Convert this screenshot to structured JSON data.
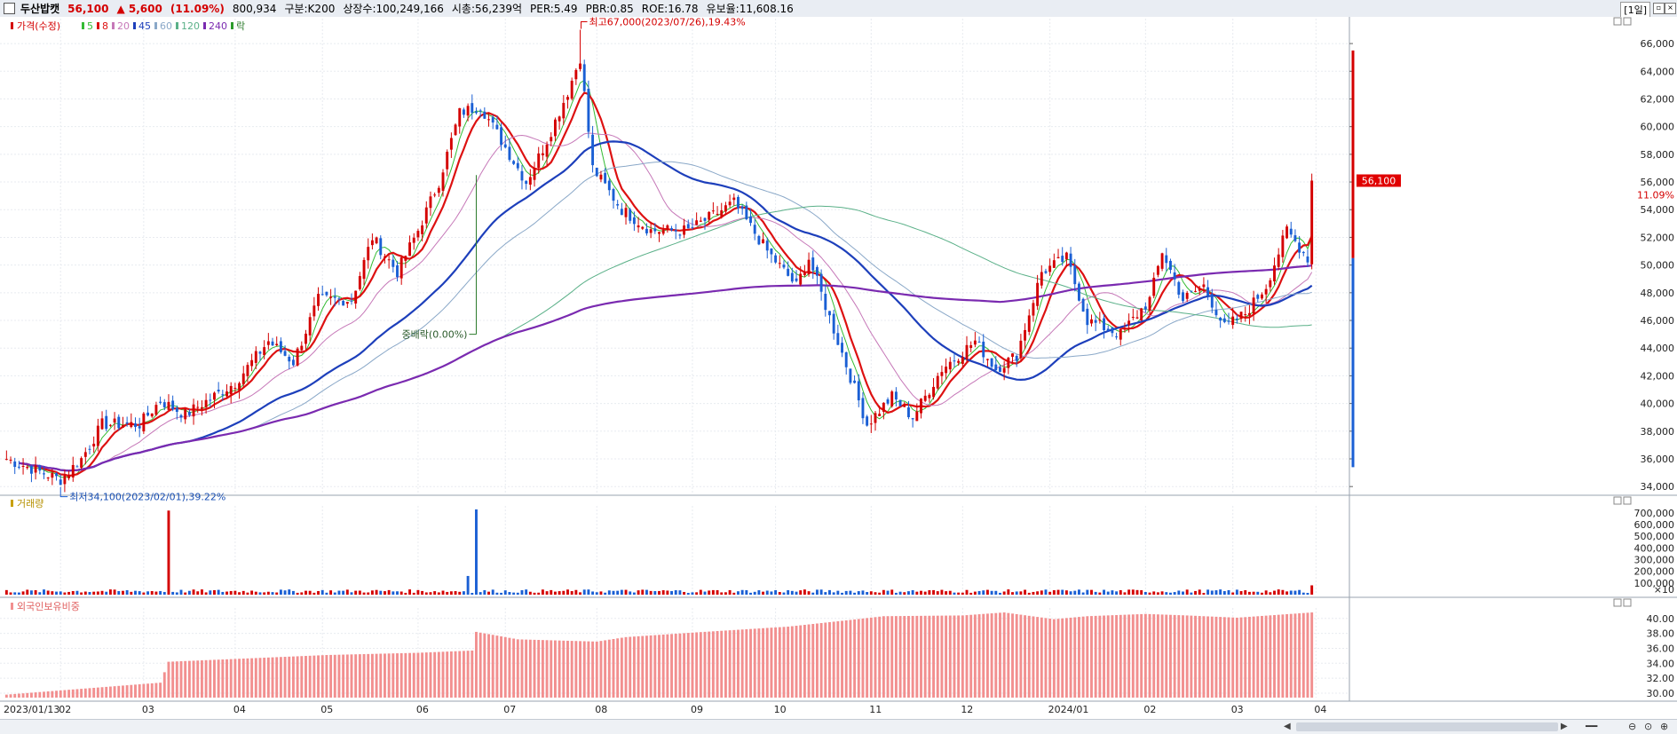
{
  "header": {
    "stock_name": "두산밥캣",
    "price": "56,100",
    "change": "▲ 5,600",
    "change_pct": "(11.09%)",
    "volume": "800,934",
    "category": "구분:K200",
    "shares": "상장수:100,249,166",
    "market_cap": "시총:56,239억",
    "per": "PER:5.49",
    "pbr": "PBR:0.85",
    "roe": "ROE:16.78",
    "float": "유보율:11,608.16",
    "period": "[1일]"
  },
  "legend": {
    "price_label": "가격(수정)",
    "ma": [
      {
        "label": "5",
        "color": "#33bb33"
      },
      {
        "label": "8",
        "color": "#dd1111"
      },
      {
        "label": "20",
        "color": "#c678b8"
      },
      {
        "label": "45",
        "color": "#1d3fbb"
      },
      {
        "label": "60",
        "color": "#8aa8c8"
      },
      {
        "label": "120",
        "color": "#5ab088"
      },
      {
        "label": "240",
        "color": "#7a2ab0"
      }
    ],
    "extra_label": "락",
    "volume_label": "거래량",
    "foreign_label": "외국인보유비중"
  },
  "annotations": {
    "high": "최고67,000(2023/07/26),19.43%",
    "low": "최저34,100(2023/02/01),39.22%",
    "ex_rights": "중배락(0.00%)",
    "current_price": "56,100",
    "current_pct": "11.09%"
  },
  "colors": {
    "up": "#d40000",
    "down": "#1a5fd4",
    "foreign": "#f28f8f"
  },
  "chart_data": [
    {
      "type": "candlestick",
      "title": "두산밥캣",
      "x_axis": {
        "ticks": [
          "2023/01/13",
          "02",
          "03",
          "04",
          "05",
          "06",
          "07",
          "08",
          "09",
          "10",
          "11",
          "12",
          "2024/01",
          "02",
          "03",
          "04"
        ],
        "start": "2023/01/13",
        "end": "2024/03/28"
      },
      "y_axis": {
        "range": [
          33500,
          67800
        ],
        "ticks": [
          "34,000",
          "36,000",
          "38,000",
          "40,000",
          "42,000",
          "44,000",
          "46,000",
          "48,000",
          "50,000",
          "52,000",
          "54,000",
          "56,000",
          "58,000",
          "60,000",
          "62,000",
          "64,000",
          "66,000"
        ]
      },
      "close_anchors": [
        [
          "2023/01/13",
          36000
        ],
        [
          "2023/02/01",
          34500
        ],
        [
          "2023/02/08",
          36000
        ],
        [
          "2023/02/15",
          38500
        ],
        [
          "2023/02/28",
          38500
        ],
        [
          "2023/03/07",
          40200
        ],
        [
          "2023/03/15",
          39200
        ],
        [
          "2023/03/31",
          41500
        ],
        [
          "2023/04/12",
          44500
        ],
        [
          "2023/04/20",
          43000
        ],
        [
          "2023/04/28",
          47500
        ],
        [
          "2023/05/10",
          47500
        ],
        [
          "2023/05/17",
          52000
        ],
        [
          "2023/05/25",
          49500
        ],
        [
          "2023/06/01",
          52500
        ],
        [
          "2023/06/08",
          56000
        ],
        [
          "2023/06/15",
          61000
        ],
        [
          "2023/06/22",
          61500
        ],
        [
          "2023/06/29",
          59000
        ],
        [
          "2023/07/07",
          56000
        ],
        [
          "2023/07/14",
          59000
        ],
        [
          "2023/07/21",
          62500
        ],
        [
          "2023/07/26",
          65000
        ],
        [
          "2023/07/31",
          57000
        ],
        [
          "2023/08/09",
          54000
        ],
        [
          "2023/08/18",
          52500
        ],
        [
          "2023/08/31",
          52500
        ],
        [
          "2023/09/15",
          54500
        ],
        [
          "2023/09/27",
          51000
        ],
        [
          "2023/10/06",
          48500
        ],
        [
          "2023/10/11",
          50500
        ],
        [
          "2023/10/20",
          44500
        ],
        [
          "2023/10/31",
          38500
        ],
        [
          "2023/11/08",
          40500
        ],
        [
          "2023/11/15",
          39000
        ],
        [
          "2023/11/24",
          42500
        ],
        [
          "2023/12/06",
          44500
        ],
        [
          "2023/12/13",
          42500
        ],
        [
          "2023/12/20",
          43500
        ],
        [
          "2023/12/28",
          49500
        ],
        [
          "2024/01/05",
          50500
        ],
        [
          "2024/01/12",
          46000
        ],
        [
          "2024/01/24",
          45000
        ],
        [
          "2024/02/02",
          47500
        ],
        [
          "2024/02/07",
          51000
        ],
        [
          "2024/02/14",
          47500
        ],
        [
          "2024/02/21",
          48500
        ],
        [
          "2024/02/28",
          45500
        ],
        [
          "2024/03/06",
          46500
        ],
        [
          "2024/03/13",
          48500
        ],
        [
          "2024/03/20",
          52500
        ],
        [
          "2024/03/27",
          50500
        ],
        [
          "2024/03/28",
          56100
        ]
      ],
      "high": {
        "date": "2023/07/26",
        "value": 67000
      },
      "low": {
        "date": "2023/02/01",
        "value": 34100
      },
      "ex_rights_date": "2023/06/21",
      "last_close": 56100
    },
    {
      "type": "bar",
      "title": "거래량",
      "y_axis": {
        "range": [
          0,
          760000
        ],
        "ticks": [
          "700,000",
          "600,000",
          "500,000",
          "400,000",
          "300,000",
          "200,000",
          "100,000",
          "×10"
        ]
      },
      "base_volume": 25000,
      "spikes": [
        {
          "date": "2023/03/09",
          "value": 720000,
          "direction": "up"
        },
        {
          "date": "2023/06/19",
          "value": 160000,
          "direction": "down"
        },
        {
          "date": "2023/06/21",
          "value": 730000,
          "direction": "down"
        },
        {
          "date": "2024/03/28",
          "value": 80000,
          "direction": "up"
        }
      ]
    },
    {
      "type": "bar",
      "title": "외국인보유비중",
      "y_axis": {
        "range": [
          29.4,
          41.4
        ],
        "ticks": [
          "30.00",
          "32.00",
          "34.00",
          "36.00",
          "38.00",
          "40.00"
        ]
      },
      "anchors": [
        [
          "2023/01/13",
          29.8
        ],
        [
          "2023/03/07",
          31.4
        ],
        [
          "2023/03/09",
          34.2
        ],
        [
          "2023/04/03",
          34.6
        ],
        [
          "2023/05/02",
          35.1
        ],
        [
          "2023/06/01",
          35.4
        ],
        [
          "2023/06/20",
          35.7
        ],
        [
          "2023/06/21",
          38.2
        ],
        [
          "2023/07/05",
          37.2
        ],
        [
          "2023/08/01",
          36.9
        ],
        [
          "2023/08/10",
          37.5
        ],
        [
          "2023/09/01",
          38.1
        ],
        [
          "2023/10/04",
          38.9
        ],
        [
          "2023/10/25",
          39.8
        ],
        [
          "2023/11/06",
          40.3
        ],
        [
          "2023/12/01",
          40.4
        ],
        [
          "2023/12/15",
          40.8
        ],
        [
          "2024/01/02",
          39.9
        ],
        [
          "2024/01/12",
          40.3
        ],
        [
          "2024/02/01",
          40.6
        ],
        [
          "2024/02/15",
          40.4
        ],
        [
          "2024/03/04",
          40.1
        ],
        [
          "2024/03/28",
          40.8
        ]
      ]
    }
  ]
}
